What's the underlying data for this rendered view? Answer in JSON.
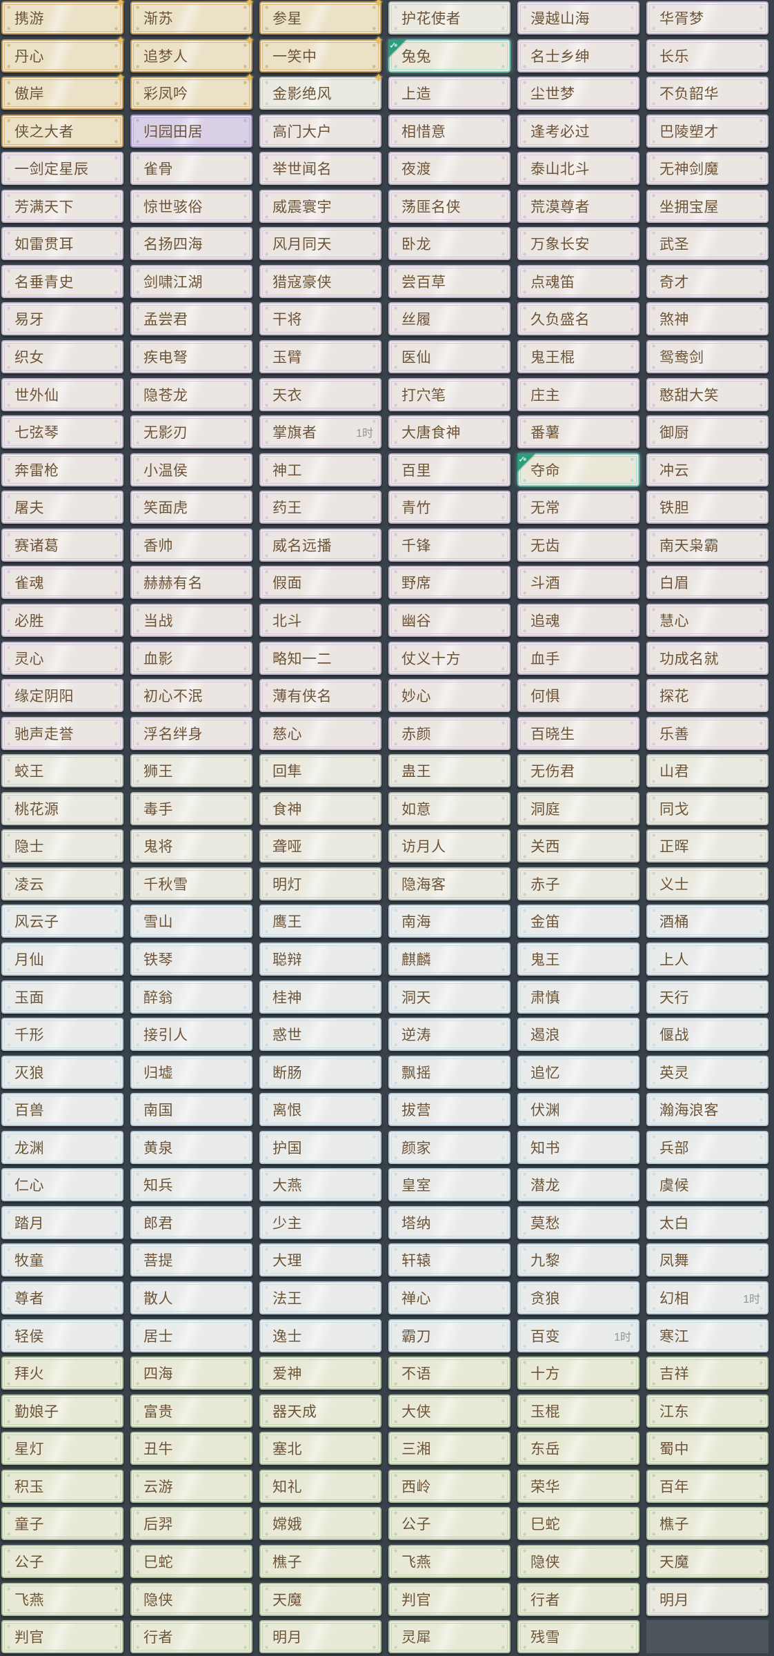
{
  "app": {
    "title": "title-selection-grid",
    "kind": "game-title-list"
  },
  "colors": {
    "background": "#39424a",
    "empty_slot": "#4c555c",
    "label_text": "#6d5335",
    "time_text": "#8e9598",
    "gold_border": "#c39a5b",
    "silver_border": "#b9beb7",
    "lavender_border": "#c3b6cf",
    "purple_border": "#a893c9",
    "blue_border": "#b7ccd7",
    "green_border": "#afc49e",
    "teal_selected_border": "#7fccc1",
    "check_badge": "#2a9f7e",
    "star": "#eebb4d"
  },
  "badges": {
    "check_glyph": "✓",
    "star_glyph": "✦"
  },
  "grid": {
    "columns": 6,
    "rows": [
      [
        {
          "t": "携游",
          "s": "gold",
          "star": true
        },
        {
          "t": "渐苏",
          "s": "gold",
          "star": true
        },
        {
          "t": "参星",
          "s": "gold",
          "star": true
        },
        {
          "t": "护花使者",
          "s": "silver"
        },
        {
          "t": "漫越山海",
          "s": "lav"
        },
        {
          "t": "华胥梦",
          "s": "lav"
        }
      ],
      [
        {
          "t": "丹心",
          "s": "gold",
          "star": true
        },
        {
          "t": "追梦人",
          "s": "gold",
          "star": true
        },
        {
          "t": "一笑中",
          "s": "gold",
          "star": true
        },
        {
          "t": "兔兔",
          "s": "teal",
          "check": true
        },
        {
          "t": "名士乡绅",
          "s": "lav"
        },
        {
          "t": "长乐",
          "s": "lav"
        }
      ],
      [
        {
          "t": "傲岸",
          "s": "gold",
          "star": true
        },
        {
          "t": "彩凤吟",
          "s": "gold",
          "star": true
        },
        {
          "t": "金影绝风",
          "s": "silver",
          "star": true
        },
        {
          "t": "上造",
          "s": "lav"
        },
        {
          "t": "尘世梦",
          "s": "lav"
        },
        {
          "t": "不负韶华",
          "s": "lav"
        }
      ],
      [
        {
          "t": "侠之大者",
          "s": "gold"
        },
        {
          "t": "归园田居",
          "s": "purple"
        },
        {
          "t": "高门大户",
          "s": "lav"
        },
        {
          "t": "相惜意",
          "s": "lav"
        },
        {
          "t": "逢考必过",
          "s": "lav"
        },
        {
          "t": "巴陵塑才",
          "s": "lav"
        }
      ],
      [
        {
          "t": "一剑定星辰",
          "s": "lav"
        },
        {
          "t": "雀骨",
          "s": "lav"
        },
        {
          "t": "举世闻名",
          "s": "lav"
        },
        {
          "t": "夜渡",
          "s": "lav"
        },
        {
          "t": "泰山北斗",
          "s": "lav"
        },
        {
          "t": "无神剑魔",
          "s": "lav"
        }
      ],
      [
        {
          "t": "芳满天下",
          "s": "lav"
        },
        {
          "t": "惊世骇俗",
          "s": "lav"
        },
        {
          "t": "威震寰宇",
          "s": "lav"
        },
        {
          "t": "荡匪名侠",
          "s": "lav"
        },
        {
          "t": "荒漠尊者",
          "s": "lav"
        },
        {
          "t": "坐拥宝屋",
          "s": "lav"
        }
      ],
      [
        {
          "t": "如雷贯耳",
          "s": "lav"
        },
        {
          "t": "名扬四海",
          "s": "lav"
        },
        {
          "t": "风月同天",
          "s": "lav"
        },
        {
          "t": "卧龙",
          "s": "lav"
        },
        {
          "t": "万象长安",
          "s": "lav"
        },
        {
          "t": "武圣",
          "s": "lav"
        }
      ],
      [
        {
          "t": "名垂青史",
          "s": "lav"
        },
        {
          "t": "剑啸江湖",
          "s": "lav"
        },
        {
          "t": "猎寇豪侠",
          "s": "lav"
        },
        {
          "t": "尝百草",
          "s": "lav"
        },
        {
          "t": "点魂笛",
          "s": "lav"
        },
        {
          "t": "奇才",
          "s": "lav"
        }
      ],
      [
        {
          "t": "易牙",
          "s": "lav"
        },
        {
          "t": "孟尝君",
          "s": "lav"
        },
        {
          "t": "干将",
          "s": "lav"
        },
        {
          "t": "丝履",
          "s": "lav"
        },
        {
          "t": "久负盛名",
          "s": "lav"
        },
        {
          "t": "煞神",
          "s": "lav"
        }
      ],
      [
        {
          "t": "织女",
          "s": "lav"
        },
        {
          "t": "疾电弩",
          "s": "lav"
        },
        {
          "t": "玉臂",
          "s": "lav"
        },
        {
          "t": "医仙",
          "s": "lav"
        },
        {
          "t": "鬼王棍",
          "s": "lav"
        },
        {
          "t": "鸳鸯剑",
          "s": "lav"
        }
      ],
      [
        {
          "t": "世外仙",
          "s": "lav"
        },
        {
          "t": "隐苍龙",
          "s": "lav"
        },
        {
          "t": "天衣",
          "s": "lav"
        },
        {
          "t": "打穴笔",
          "s": "lav"
        },
        {
          "t": "庄主",
          "s": "lav"
        },
        {
          "t": "憨甜大笑",
          "s": "lav"
        }
      ],
      [
        {
          "t": "七弦琴",
          "s": "lav"
        },
        {
          "t": "无影刃",
          "s": "lav"
        },
        {
          "t": "掌旗者",
          "s": "lav",
          "time": "1时"
        },
        {
          "t": "大唐食神",
          "s": "lav"
        },
        {
          "t": "番薯",
          "s": "lav"
        },
        {
          "t": "御厨",
          "s": "lav"
        }
      ],
      [
        {
          "t": "奔雷枪",
          "s": "lav"
        },
        {
          "t": "小温侯",
          "s": "lav"
        },
        {
          "t": "神工",
          "s": "lav"
        },
        {
          "t": "百里",
          "s": "lav"
        },
        {
          "t": "夺命",
          "s": "teal",
          "check": true
        },
        {
          "t": "冲云",
          "s": "lav"
        }
      ],
      [
        {
          "t": "屠夫",
          "s": "lav"
        },
        {
          "t": "笑面虎",
          "s": "lav"
        },
        {
          "t": "药王",
          "s": "lav"
        },
        {
          "t": "青竹",
          "s": "lav"
        },
        {
          "t": "无常",
          "s": "lav"
        },
        {
          "t": "铁胆",
          "s": "lav"
        }
      ],
      [
        {
          "t": "赛诸葛",
          "s": "lav"
        },
        {
          "t": "香帅",
          "s": "lav"
        },
        {
          "t": "威名远播",
          "s": "lav"
        },
        {
          "t": "千锋",
          "s": "lav"
        },
        {
          "t": "无齿",
          "s": "lav"
        },
        {
          "t": "南天枭霸",
          "s": "lav"
        }
      ],
      [
        {
          "t": "雀魂",
          "s": "lav"
        },
        {
          "t": "赫赫有名",
          "s": "lav"
        },
        {
          "t": "假面",
          "s": "lav"
        },
        {
          "t": "野席",
          "s": "lav"
        },
        {
          "t": "斗酒",
          "s": "lav"
        },
        {
          "t": "白眉",
          "s": "lav"
        }
      ],
      [
        {
          "t": "必胜",
          "s": "lav"
        },
        {
          "t": "当战",
          "s": "lav"
        },
        {
          "t": "北斗",
          "s": "lav"
        },
        {
          "t": "幽谷",
          "s": "lav"
        },
        {
          "t": "追魂",
          "s": "lav"
        },
        {
          "t": "慧心",
          "s": "lav"
        }
      ],
      [
        {
          "t": "灵心",
          "s": "lav"
        },
        {
          "t": "血影",
          "s": "lav"
        },
        {
          "t": "略知一二",
          "s": "lav"
        },
        {
          "t": "仗义十方",
          "s": "lav"
        },
        {
          "t": "血手",
          "s": "lav"
        },
        {
          "t": "功成名就",
          "s": "lav"
        }
      ],
      [
        {
          "t": "缘定阴阳",
          "s": "lav"
        },
        {
          "t": "初心不泯",
          "s": "lav"
        },
        {
          "t": "薄有侠名",
          "s": "lav"
        },
        {
          "t": "妙心",
          "s": "lav"
        },
        {
          "t": "何惧",
          "s": "lav"
        },
        {
          "t": "探花",
          "s": "lav"
        }
      ],
      [
        {
          "t": "驰声走誉",
          "s": "lav"
        },
        {
          "t": "浮名绊身",
          "s": "lav"
        },
        {
          "t": "慈心",
          "s": "lav"
        },
        {
          "t": "赤颜",
          "s": "lav"
        },
        {
          "t": "百晓生",
          "s": "lav"
        },
        {
          "t": "乐善",
          "s": "lav"
        }
      ],
      [
        {
          "t": "蛟王",
          "s": "silver"
        },
        {
          "t": "狮王",
          "s": "silver"
        },
        {
          "t": "回隼",
          "s": "silver"
        },
        {
          "t": "蛊王",
          "s": "silver"
        },
        {
          "t": "无伤君",
          "s": "silver"
        },
        {
          "t": "山君",
          "s": "silver"
        }
      ],
      [
        {
          "t": "桃花源",
          "s": "silver"
        },
        {
          "t": "毒手",
          "s": "silver"
        },
        {
          "t": "食神",
          "s": "silver"
        },
        {
          "t": "如意",
          "s": "silver"
        },
        {
          "t": "洞庭",
          "s": "silver"
        },
        {
          "t": "同戈",
          "s": "silver"
        }
      ],
      [
        {
          "t": "隐士",
          "s": "silver"
        },
        {
          "t": "鬼将",
          "s": "silver"
        },
        {
          "t": "聋哑",
          "s": "silver"
        },
        {
          "t": "访月人",
          "s": "silver"
        },
        {
          "t": "关西",
          "s": "silver"
        },
        {
          "t": "正晖",
          "s": "silver"
        }
      ],
      [
        {
          "t": "凌云",
          "s": "silver"
        },
        {
          "t": "千秋雪",
          "s": "silver"
        },
        {
          "t": "明灯",
          "s": "silver"
        },
        {
          "t": "隐海客",
          "s": "silver"
        },
        {
          "t": "赤子",
          "s": "silver"
        },
        {
          "t": "义士",
          "s": "silver"
        }
      ],
      [
        {
          "t": "风云子",
          "s": "blue"
        },
        {
          "t": "雪山",
          "s": "blue"
        },
        {
          "t": "鹰王",
          "s": "blue"
        },
        {
          "t": "南海",
          "s": "blue"
        },
        {
          "t": "金笛",
          "s": "blue"
        },
        {
          "t": "酒桶",
          "s": "blue"
        }
      ],
      [
        {
          "t": "月仙",
          "s": "blue"
        },
        {
          "t": "铁琴",
          "s": "blue"
        },
        {
          "t": "聪辩",
          "s": "blue"
        },
        {
          "t": "麒麟",
          "s": "blue"
        },
        {
          "t": "鬼王",
          "s": "blue"
        },
        {
          "t": "上人",
          "s": "blue"
        }
      ],
      [
        {
          "t": "玉面",
          "s": "blue"
        },
        {
          "t": "醉翁",
          "s": "blue"
        },
        {
          "t": "桂神",
          "s": "blue"
        },
        {
          "t": "洞天",
          "s": "blue"
        },
        {
          "t": "肃慎",
          "s": "blue"
        },
        {
          "t": "天行",
          "s": "blue"
        }
      ],
      [
        {
          "t": "千形",
          "s": "blue"
        },
        {
          "t": "接引人",
          "s": "blue"
        },
        {
          "t": "惑世",
          "s": "blue"
        },
        {
          "t": "逆涛",
          "s": "blue"
        },
        {
          "t": "遏浪",
          "s": "blue"
        },
        {
          "t": "偃战",
          "s": "blue"
        }
      ],
      [
        {
          "t": "灭狼",
          "s": "blue"
        },
        {
          "t": "归墟",
          "s": "blue"
        },
        {
          "t": "断肠",
          "s": "blue"
        },
        {
          "t": "飘摇",
          "s": "blue"
        },
        {
          "t": "追忆",
          "s": "blue"
        },
        {
          "t": "英灵",
          "s": "blue"
        }
      ],
      [
        {
          "t": "百兽",
          "s": "blue"
        },
        {
          "t": "南国",
          "s": "blue"
        },
        {
          "t": "离恨",
          "s": "blue"
        },
        {
          "t": "拔营",
          "s": "blue"
        },
        {
          "t": "伏渊",
          "s": "blue"
        },
        {
          "t": "瀚海浪客",
          "s": "blue"
        }
      ],
      [
        {
          "t": "龙渊",
          "s": "blue"
        },
        {
          "t": "黄泉",
          "s": "blue"
        },
        {
          "t": "护国",
          "s": "blue"
        },
        {
          "t": "颜家",
          "s": "blue"
        },
        {
          "t": "知书",
          "s": "blue"
        },
        {
          "t": "兵部",
          "s": "blue"
        }
      ],
      [
        {
          "t": "仁心",
          "s": "blue"
        },
        {
          "t": "知兵",
          "s": "blue"
        },
        {
          "t": "大燕",
          "s": "blue"
        },
        {
          "t": "皇室",
          "s": "blue"
        },
        {
          "t": "潜龙",
          "s": "blue"
        },
        {
          "t": "虞候",
          "s": "blue"
        }
      ],
      [
        {
          "t": "踏月",
          "s": "blue"
        },
        {
          "t": "郎君",
          "s": "blue"
        },
        {
          "t": "少主",
          "s": "blue"
        },
        {
          "t": "塔纳",
          "s": "blue"
        },
        {
          "t": "莫愁",
          "s": "blue"
        },
        {
          "t": "太白",
          "s": "blue"
        }
      ],
      [
        {
          "t": "牧童",
          "s": "blue"
        },
        {
          "t": "菩提",
          "s": "blue"
        },
        {
          "t": "大理",
          "s": "blue"
        },
        {
          "t": "轩辕",
          "s": "blue"
        },
        {
          "t": "九黎",
          "s": "blue"
        },
        {
          "t": "凤舞",
          "s": "blue"
        }
      ],
      [
        {
          "t": "尊者",
          "s": "blue"
        },
        {
          "t": "散人",
          "s": "blue"
        },
        {
          "t": "法王",
          "s": "blue"
        },
        {
          "t": "禅心",
          "s": "blue"
        },
        {
          "t": "贪狼",
          "s": "blue"
        },
        {
          "t": "幻相",
          "s": "blue",
          "time": "1时"
        }
      ],
      [
        {
          "t": "轻侯",
          "s": "blue"
        },
        {
          "t": "居士",
          "s": "blue"
        },
        {
          "t": "逸士",
          "s": "blue"
        },
        {
          "t": "霸刀",
          "s": "blue"
        },
        {
          "t": "百变",
          "s": "blue",
          "time": "1时"
        },
        {
          "t": "寒江",
          "s": "blue"
        }
      ],
      [
        {
          "t": "拜火",
          "s": "green"
        },
        {
          "t": "四海",
          "s": "green"
        },
        {
          "t": "爱神",
          "s": "green"
        },
        {
          "t": "不语",
          "s": "green"
        },
        {
          "t": "十方",
          "s": "green"
        },
        {
          "t": "吉祥",
          "s": "green"
        }
      ],
      [
        {
          "t": "勤娘子",
          "s": "green"
        },
        {
          "t": "富贵",
          "s": "green"
        },
        {
          "t": "器天成",
          "s": "green"
        },
        {
          "t": "大侠",
          "s": "green"
        },
        {
          "t": "玉棍",
          "s": "green"
        },
        {
          "t": "江东",
          "s": "green"
        }
      ],
      [
        {
          "t": "星灯",
          "s": "green"
        },
        {
          "t": "丑牛",
          "s": "green"
        },
        {
          "t": "塞北",
          "s": "green"
        },
        {
          "t": "三湘",
          "s": "green"
        },
        {
          "t": "东岳",
          "s": "green"
        },
        {
          "t": "蜀中",
          "s": "green"
        }
      ],
      [
        {
          "t": "积玉",
          "s": "green"
        },
        {
          "t": "云游",
          "s": "green"
        },
        {
          "t": "知礼",
          "s": "green"
        },
        {
          "t": "西岭",
          "s": "green"
        },
        {
          "t": "荣华",
          "s": "green"
        },
        {
          "t": "百年",
          "s": "green"
        }
      ],
      [
        {
          "t": "童子",
          "s": "green"
        },
        {
          "t": "后羿",
          "s": "green"
        },
        {
          "t": "嫦娥",
          "s": "green"
        },
        {
          "t": "公子",
          "s": "green"
        },
        {
          "t": "巳蛇",
          "s": "green"
        },
        {
          "t": "樵子",
          "s": "green"
        }
      ],
      [
        {
          "t": "公子",
          "s": "green"
        },
        {
          "t": "巳蛇",
          "s": "green"
        },
        {
          "t": "樵子",
          "s": "green"
        },
        {
          "t": "飞燕",
          "s": "green"
        },
        {
          "t": "隐侠",
          "s": "green"
        },
        {
          "t": "天魔",
          "s": "green"
        }
      ],
      [
        {
          "t": "飞燕",
          "s": "green"
        },
        {
          "t": "隐侠",
          "s": "green"
        },
        {
          "t": "天魔",
          "s": "green"
        },
        {
          "t": "判官",
          "s": "green"
        },
        {
          "t": "行者",
          "s": "green"
        },
        {
          "t": "明月",
          "s": "silver"
        }
      ],
      [
        {
          "t": "判官",
          "s": "green"
        },
        {
          "t": "行者",
          "s": "green"
        },
        {
          "t": "明月",
          "s": "green"
        },
        {
          "t": "灵犀",
          "s": "green"
        },
        {
          "t": "残雪",
          "s": "green"
        },
        {
          "s": "empty"
        }
      ]
    ]
  }
}
